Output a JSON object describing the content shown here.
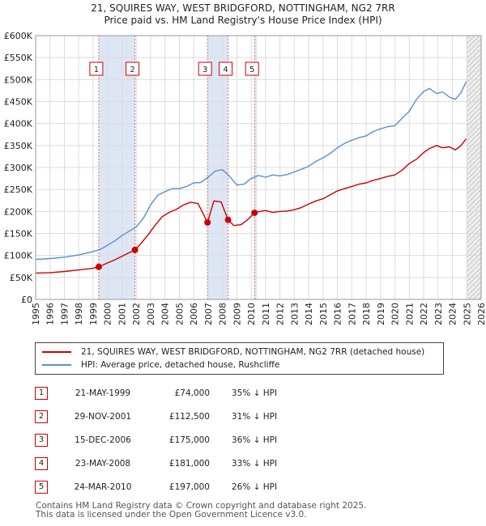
{
  "chart_data": {
    "type": "line",
    "title": "21, SQUIRES WAY, WEST BRIDGFORD, NOTTINGHAM, NG2 7RR",
    "subtitle": "Price paid vs. HM Land Registry's House Price Index (HPI)",
    "x_ticks": [
      "1995",
      "1996",
      "1997",
      "1998",
      "1999",
      "2000",
      "2001",
      "2002",
      "2003",
      "2004",
      "2005",
      "2006",
      "2007",
      "2008",
      "2009",
      "2010",
      "2011",
      "2012",
      "2013",
      "2014",
      "2015",
      "2016",
      "2017",
      "2018",
      "2019",
      "2020",
      "2021",
      "2022",
      "2023",
      "2024",
      "2025",
      "2026"
    ],
    "y_ticks": [
      "£0",
      "£50K",
      "£100K",
      "£150K",
      "£200K",
      "£250K",
      "£300K",
      "£350K",
      "£400K",
      "£450K",
      "£500K",
      "£550K",
      "£600K"
    ],
    "xlim": [
      1995,
      2026
    ],
    "ylim": [
      0,
      600000
    ],
    "series": [
      {
        "name": "21, SQUIRES WAY, WEST BRIDGFORD, NOTTINGHAM, NG2 7RR (detached house)",
        "color": "#cc0000",
        "x": [
          1995.0,
          1996.0,
          1997.0,
          1998.0,
          1999.0,
          1999.39,
          2000.0,
          2000.5,
          2001.0,
          2001.5,
          2001.91,
          2002.3,
          2002.8,
          2003.3,
          2003.8,
          2004.3,
          2004.8,
          2005.3,
          2005.8,
          2006.3,
          2006.96,
          2007.4,
          2007.9,
          2008.39,
          2008.8,
          2009.3,
          2009.7,
          2010.23,
          2010.6,
          2011.0,
          2011.5,
          2012.0,
          2012.5,
          2013.0,
          2013.5,
          2014.0,
          2014.5,
          2015.0,
          2015.5,
          2016.0,
          2016.5,
          2017.0,
          2017.5,
          2018.0,
          2018.5,
          2019.0,
          2019.5,
          2020.0,
          2020.5,
          2021.0,
          2021.5,
          2022.0,
          2022.4,
          2022.9,
          2023.3,
          2023.8,
          2024.2,
          2024.6,
          2024.95
        ],
        "y": [
          60000,
          61000,
          63500,
          67000,
          71000,
          74000,
          83000,
          90000,
          98000,
          106000,
          112500,
          126000,
          146000,
          168000,
          188000,
          198000,
          205000,
          215000,
          221000,
          218000,
          175000,
          224000,
          222000,
          181000,
          168000,
          170000,
          180000,
          197000,
          200000,
          202000,
          198000,
          200000,
          201000,
          204000,
          209000,
          217000,
          224000,
          229000,
          238000,
          247000,
          252000,
          257000,
          262000,
          265000,
          271000,
          275000,
          280000,
          283000,
          294000,
          309000,
          319000,
          334000,
          343000,
          350000,
          345000,
          347000,
          340000,
          350000,
          365000
        ]
      },
      {
        "name": "HPI: Average price, detached house, Rushcliffe",
        "color": "#5b8fce",
        "x": [
          1995.0,
          1996.0,
          1997.0,
          1998.0,
          1999.0,
          1999.5,
          2000.0,
          2000.5,
          2001.0,
          2001.5,
          2002.0,
          2002.5,
          2003.0,
          2003.5,
          2004.0,
          2004.5,
          2005.0,
          2005.5,
          2006.0,
          2006.5,
          2007.0,
          2007.5,
          2008.0,
          2008.5,
          2009.0,
          2009.5,
          2010.0,
          2010.5,
          2011.0,
          2011.5,
          2012.0,
          2012.5,
          2013.0,
          2013.5,
          2014.0,
          2014.5,
          2015.0,
          2015.5,
          2016.0,
          2016.5,
          2017.0,
          2017.5,
          2018.0,
          2018.5,
          2019.0,
          2019.5,
          2020.0,
          2020.5,
          2021.0,
          2021.5,
          2022.0,
          2022.4,
          2022.9,
          2023.3,
          2023.8,
          2024.2,
          2024.6,
          2024.95
        ],
        "y": [
          91000,
          93000,
          96000,
          101000,
          109000,
          114000,
          123000,
          133000,
          145000,
          155000,
          165000,
          185000,
          215000,
          237000,
          245000,
          252000,
          252000,
          257000,
          265000,
          266000,
          278000,
          292000,
          295000,
          280000,
          260000,
          262000,
          275000,
          282000,
          278000,
          283000,
          281000,
          284000,
          290000,
          296000,
          303000,
          314000,
          322000,
          332000,
          345000,
          355000,
          362000,
          368000,
          372000,
          382000,
          388000,
          393000,
          395000,
          412000,
          428000,
          455000,
          473000,
          480000,
          468000,
          472000,
          460000,
          455000,
          470000,
          495000
        ]
      }
    ],
    "sales": [
      {
        "num": "1",
        "date": "21-MAY-1999",
        "x": 1999.39,
        "price_value": 74000,
        "price": "£74,000",
        "hpi_diff": "35% ↓ HPI"
      },
      {
        "num": "2",
        "date": "29-NOV-2001",
        "x": 2001.91,
        "price_value": 112500,
        "price": "£112,500",
        "hpi_diff": "31% ↓ HPI"
      },
      {
        "num": "3",
        "date": "15-DEC-2006",
        "x": 2006.96,
        "price_value": 175000,
        "price": "£175,000",
        "hpi_diff": "36% ↓ HPI"
      },
      {
        "num": "4",
        "date": "23-MAY-2008",
        "x": 2008.39,
        "price_value": 181000,
        "price": "£181,000",
        "hpi_diff": "33% ↓ HPI"
      },
      {
        "num": "5",
        "date": "24-MAR-2010",
        "x": 2010.23,
        "price_value": 197000,
        "price": "£197,000",
        "hpi_diff": "26% ↓ HPI"
      }
    ],
    "shaded_ranges": [
      [
        1999.39,
        2001.91
      ],
      [
        2006.96,
        2008.39
      ],
      [
        2010.23,
        2010.4
      ]
    ],
    "future_start": 2025.0,
    "shade_color": "#dde6f5",
    "grid": true
  },
  "legend": {
    "property_label": "21, SQUIRES WAY, WEST BRIDGFORD, NOTTINGHAM, NG2 7RR (detached house)",
    "hpi_label": "HPI: Average price, detached house, Rushcliffe"
  },
  "footer": {
    "line1": "Contains HM Land Registry data © Crown copyright and database right 2025.",
    "line2": "This data is licensed under the Open Government Licence v3.0."
  }
}
